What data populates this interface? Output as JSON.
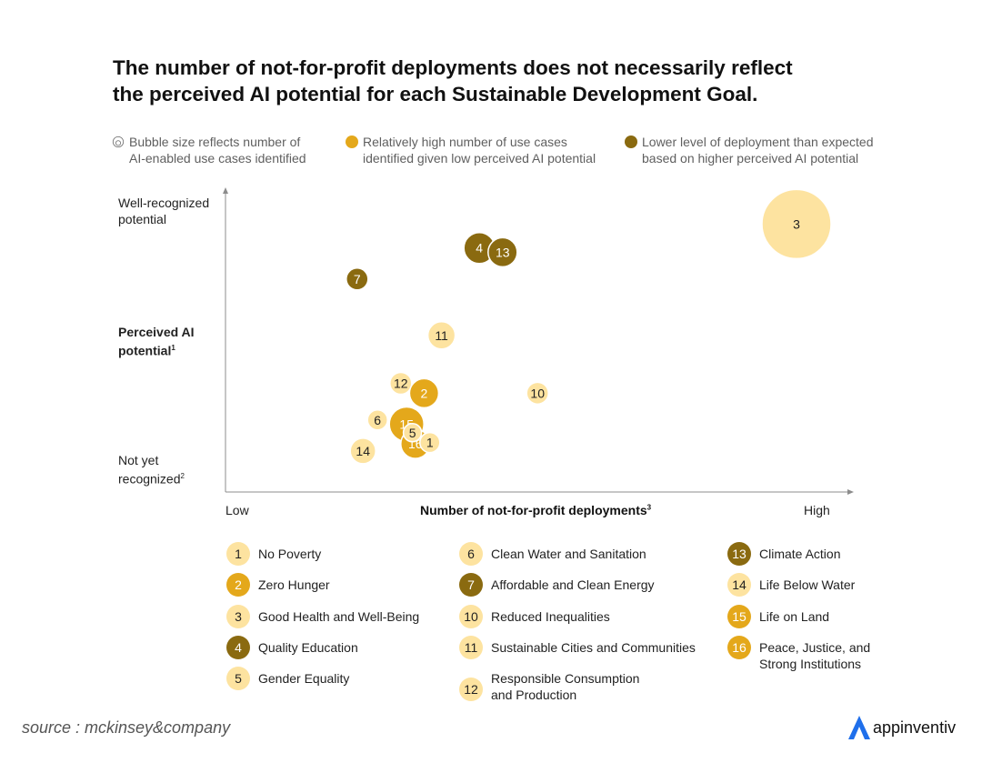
{
  "chart_data": {
    "type": "scatter",
    "title_lines": [
      "The number of not-for-profit deployments does not necessarily reflect",
      "the perceived AI potential for each Sustainable Development Goal."
    ],
    "key": {
      "size": [
        "Bubble size reflects number of",
        "AI-enabled use cases identified"
      ],
      "high": [
        "Relatively high number of use cases",
        "identified given low perceived AI potential"
      ],
      "low": [
        "Lower level of deployment than expected",
        "based on higher perceived AI potential"
      ]
    },
    "y_axis": {
      "top_lines": [
        "Well-recognized",
        "potential"
      ],
      "title_lines": [
        "Perceived AI",
        "potential"
      ],
      "title_sup": "1",
      "bottom_lines": [
        "Not yet",
        "recognized"
      ],
      "bottom_sup": "2"
    },
    "x_axis": {
      "low": "Low",
      "high": "High",
      "title": "Number of not-for-profit deployments",
      "title_sup": "3"
    },
    "xlim": [
      0,
      100
    ],
    "ylim": [
      0,
      100
    ],
    "colors": {
      "light": "#fde3a0",
      "high": "#e4a81b",
      "low": "#8a6a10",
      "axis": "#8c8c8c"
    },
    "points": [
      {
        "id": "3",
        "x": 90.0,
        "y": 91.5,
        "r": 38,
        "category": "light"
      },
      {
        "id": "4",
        "x": 35.5,
        "y": 83.0,
        "r": 17,
        "category": "low"
      },
      {
        "id": "13",
        "x": 39.5,
        "y": 81.5,
        "r": 16,
        "category": "low"
      },
      {
        "id": "7",
        "x": 14.5,
        "y": 72.0,
        "r": 12,
        "category": "low"
      },
      {
        "id": "11",
        "x": 29.0,
        "y": 52.0,
        "r": 15,
        "category": "light"
      },
      {
        "id": "12",
        "x": 22.0,
        "y": 35.0,
        "r": 12,
        "category": "light"
      },
      {
        "id": "2",
        "x": 26.0,
        "y": 31.5,
        "r": 16,
        "category": "high"
      },
      {
        "id": "10",
        "x": 45.5,
        "y": 31.5,
        "r": 12,
        "category": "light"
      },
      {
        "id": "6",
        "x": 18.0,
        "y": 22.0,
        "r": 11,
        "category": "light"
      },
      {
        "id": "15",
        "x": 23.0,
        "y": 20.5,
        "r": 19,
        "category": "high"
      },
      {
        "id": "16",
        "x": 24.5,
        "y": 13.5,
        "r": 16,
        "category": "high"
      },
      {
        "id": "5",
        "x": 24.0,
        "y": 17.5,
        "r": 10,
        "category": "light"
      },
      {
        "id": "1",
        "x": 27.0,
        "y": 14.0,
        "r": 11,
        "category": "light"
      },
      {
        "id": "14",
        "x": 15.5,
        "y": 11.0,
        "r": 14,
        "category": "light"
      }
    ],
    "legend": [
      {
        "num": "1",
        "lines": [
          "No Poverty"
        ],
        "category": "light"
      },
      {
        "num": "2",
        "lines": [
          "Zero Hunger"
        ],
        "category": "high"
      },
      {
        "num": "3",
        "lines": [
          "Good Health and Well-Being"
        ],
        "category": "light"
      },
      {
        "num": "4",
        "lines": [
          "Quality Education"
        ],
        "category": "low"
      },
      {
        "num": "5",
        "lines": [
          "Gender Equality"
        ],
        "category": "light"
      },
      {
        "num": "6",
        "lines": [
          "Clean Water and Sanitation"
        ],
        "category": "light"
      },
      {
        "num": "7",
        "lines": [
          "Affordable and Clean Energy"
        ],
        "category": "low"
      },
      {
        "num": "10",
        "lines": [
          "Reduced Inequalities"
        ],
        "category": "light"
      },
      {
        "num": "11",
        "lines": [
          "Sustainable Cities and Communities"
        ],
        "category": "light"
      },
      {
        "num": "12",
        "lines": [
          "Responsible Consumption",
          "and Production"
        ],
        "category": "light"
      },
      {
        "num": "13",
        "lines": [
          "Climate Action"
        ],
        "category": "low"
      },
      {
        "num": "14",
        "lines": [
          "Life Below Water"
        ],
        "category": "light"
      },
      {
        "num": "15",
        "lines": [
          "Life on Land"
        ],
        "category": "high"
      },
      {
        "num": "16",
        "lines": [
          "Peace, Justice, and",
          "Strong Institutions"
        ],
        "category": "high"
      }
    ]
  },
  "source": "source : mckinsey&company",
  "brand": {
    "name": "appinventiv",
    "color": "#1f6feb"
  }
}
